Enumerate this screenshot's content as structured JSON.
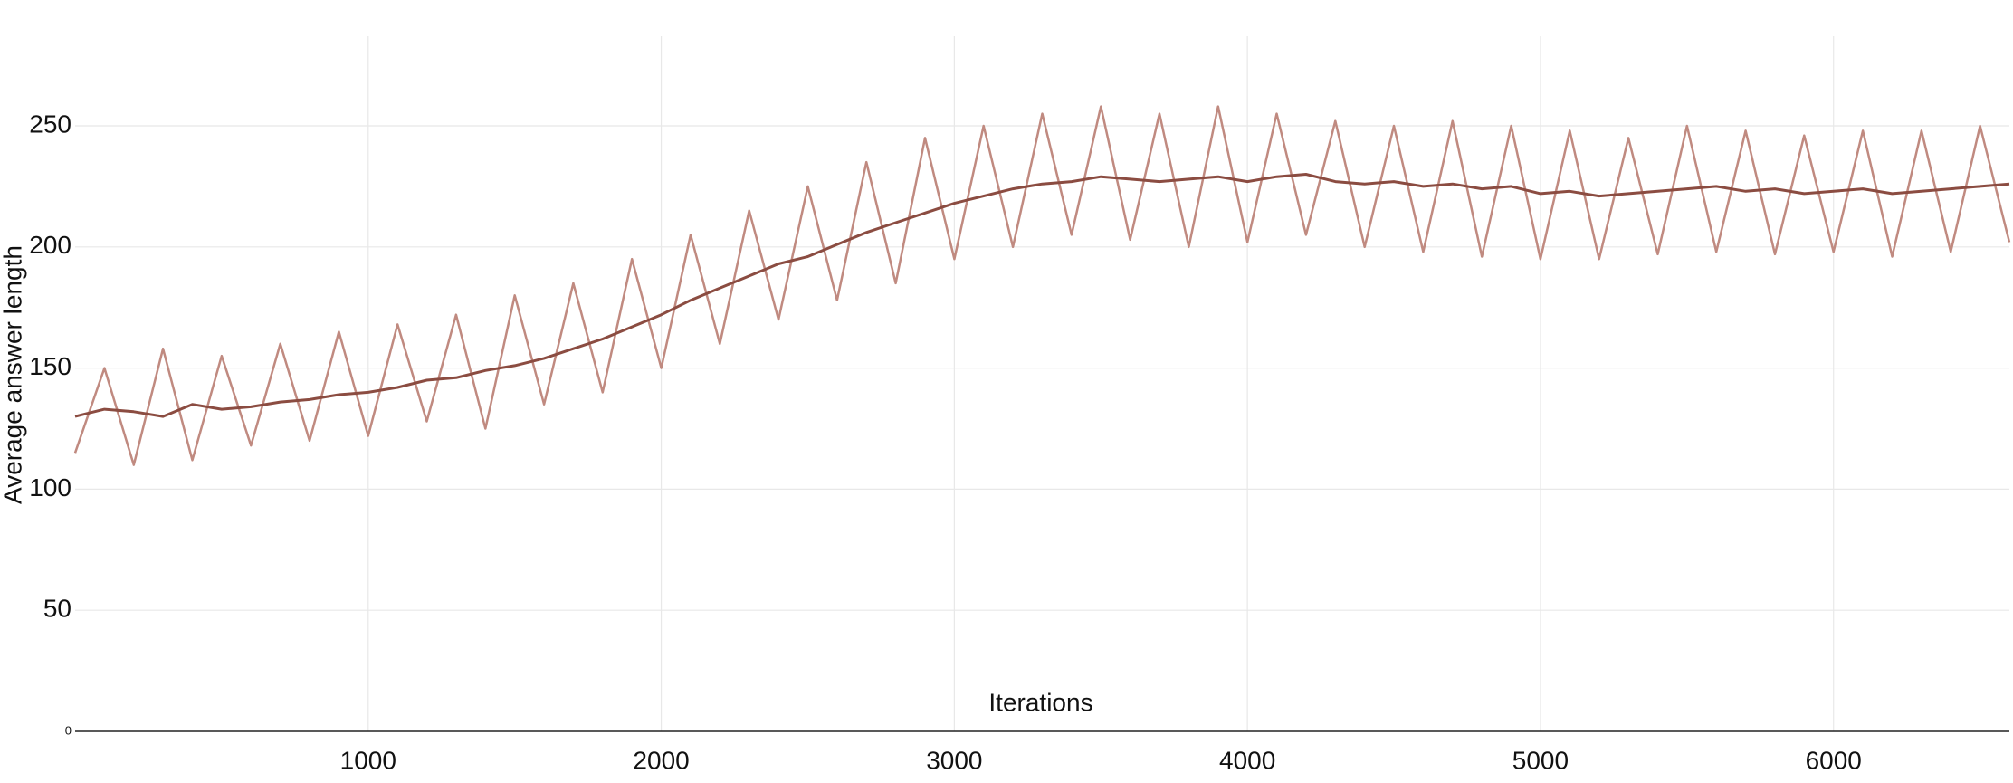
{
  "chart_data": {
    "type": "line",
    "xlabel": "Iterations",
    "ylabel": "Average answer length",
    "x": [
      0,
      100,
      200,
      300,
      400,
      500,
      600,
      700,
      800,
      900,
      1000,
      1100,
      1200,
      1300,
      1400,
      1500,
      1600,
      1700,
      1800,
      1900,
      2000,
      2100,
      2200,
      2300,
      2400,
      2500,
      2600,
      2700,
      2800,
      2900,
      3000,
      3100,
      3200,
      3300,
      3400,
      3500,
      3600,
      3700,
      3800,
      3900,
      4000,
      4100,
      4200,
      4300,
      4400,
      4500,
      4600,
      4700,
      4800,
      4900,
      5000,
      5100,
      5200,
      5300,
      5400,
      5500,
      5600,
      5700,
      5800,
      5900,
      6000,
      6100,
      6200,
      6300,
      6400,
      6500,
      6600
    ],
    "series": [
      {
        "color": "#c08a80",
        "values": [
          115,
          150,
          110,
          158,
          112,
          155,
          118,
          160,
          120,
          165,
          122,
          168,
          128,
          172,
          125,
          180,
          135,
          185,
          140,
          195,
          150,
          205,
          160,
          215,
          170,
          225,
          178,
          235,
          185,
          245,
          195,
          250,
          200,
          255,
          205,
          258,
          203,
          255,
          200,
          258,
          202,
          255,
          205,
          252,
          200,
          250,
          198,
          252,
          196,
          250,
          195,
          248,
          195,
          245,
          197,
          250,
          198,
          248,
          197,
          246,
          198,
          248,
          196,
          248,
          198,
          250,
          202
        ]
      },
      {
        "color": "#8b4c41",
        "values": [
          130,
          133,
          132,
          130,
          135,
          133,
          134,
          136,
          137,
          139,
          140,
          142,
          145,
          146,
          149,
          151,
          154,
          158,
          162,
          167,
          172,
          178,
          183,
          188,
          193,
          196,
          201,
          206,
          210,
          214,
          218,
          221,
          224,
          226,
          227,
          229,
          228,
          227,
          228,
          229,
          227,
          229,
          230,
          227,
          226,
          227,
          225,
          226,
          224,
          225,
          222,
          223,
          221,
          222,
          223,
          224,
          225,
          223,
          224,
          222,
          223,
          224,
          222,
          223,
          224,
          225,
          226
        ]
      }
    ],
    "xlim": [
      0,
      6600
    ],
    "xticks": [
      1000,
      2000,
      3000,
      4000,
      5000,
      6000
    ],
    "ylim": [
      0,
      287
    ],
    "yticks": [
      0,
      50,
      100,
      150,
      200,
      250
    ],
    "grid": true
  }
}
